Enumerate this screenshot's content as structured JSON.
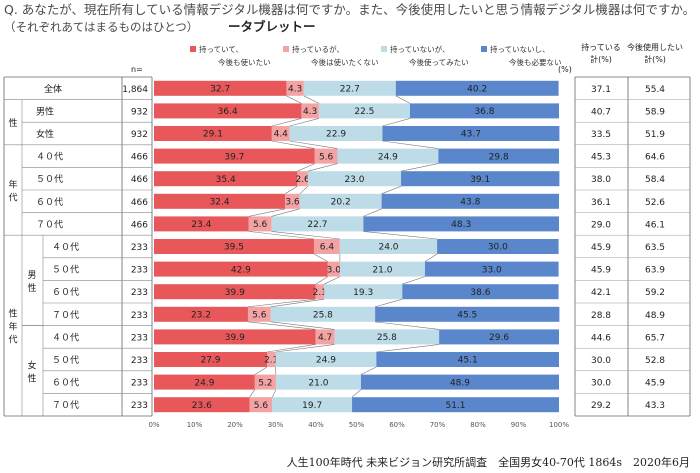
{
  "question": "Q. あなたが、現在所有している情報デジタル機器は何ですか。また、今後使用したいと思う情報デジタル機器は何ですか。",
  "subtitle": "（それぞれあてはまるものはひとつ）",
  "device": "ータブレットー",
  "n_label": "n=",
  "percent_unit": "(%)",
  "legend": [
    {
      "line1": "持っていて、",
      "line2": "今後も使いたい",
      "color": "#E8585A"
    },
    {
      "line1": "持っているが、",
      "line2": "今後は使いたくない",
      "color": "#F3A3A4"
    },
    {
      "line1": "持っていないが、",
      "line2": "今後使ってみたい",
      "color": "#BDDCE7"
    },
    {
      "line1": "持っていないし、",
      "line2": "今後も必要ない",
      "color": "#5A86CC"
    }
  ],
  "columns": {
    "own_line1": "持っている",
    "own_line2": "計(%)",
    "future_line1": "今後使用したい",
    "future_line2": "計(%)"
  },
  "groups": {
    "gender": "性",
    "age": "年代",
    "genderage": "性年代",
    "male": "男性",
    "female": "女性"
  },
  "footer": "人生100年時代 未来ビジョン研究所調査　全国男女40-70代 1864s　2020年6月",
  "chart_data": {
    "type": "bar",
    "stacked": true,
    "orientation": "horizontal",
    "xlim": [
      0,
      100
    ],
    "x_ticks": [
      "0%",
      "10%",
      "20%",
      "30%",
      "40%",
      "50%",
      "60%",
      "70%",
      "80%",
      "90%",
      "100%"
    ],
    "categories": [
      "全体",
      "男性",
      "女性",
      "４０代",
      "５０代",
      "６０代",
      "７０代",
      "４０代",
      "５０代",
      "６０代",
      "７０代",
      "４０代",
      "５０代",
      "６０代",
      "７０代"
    ],
    "n": [
      "1,864",
      "932",
      "932",
      "466",
      "466",
      "466",
      "466",
      "233",
      "233",
      "233",
      "233",
      "233",
      "233",
      "233",
      "233"
    ],
    "series": [
      {
        "values": [
          32.7,
          36.4,
          29.1,
          39.7,
          35.4,
          32.4,
          23.4,
          39.5,
          42.9,
          39.9,
          23.2,
          39.9,
          27.9,
          24.9,
          23.6
        ]
      },
      {
        "values": [
          4.3,
          4.3,
          4.4,
          5.6,
          2.6,
          3.6,
          5.6,
          6.4,
          3.0,
          2.1,
          5.6,
          4.7,
          2.1,
          5.2,
          5.6
        ]
      },
      {
        "values": [
          22.7,
          22.5,
          22.9,
          24.9,
          23.0,
          20.2,
          22.7,
          24.0,
          21.0,
          19.3,
          25.8,
          25.8,
          24.9,
          21.0,
          19.7
        ]
      },
      {
        "values": [
          40.2,
          36.8,
          43.7,
          29.8,
          39.1,
          43.8,
          48.3,
          30.0,
          33.0,
          38.6,
          45.5,
          29.6,
          45.1,
          48.9,
          51.1
        ]
      }
    ],
    "own_total": [
      "37.1",
      "40.7",
      "33.5",
      "45.3",
      "38.0",
      "36.1",
      "29.0",
      "45.9",
      "45.9",
      "42.1",
      "28.8",
      "44.6",
      "30.0",
      "30.0",
      "29.2"
    ],
    "future_total": [
      "55.4",
      "58.9",
      "51.9",
      "64.6",
      "58.4",
      "52.6",
      "46.1",
      "63.5",
      "63.9",
      "59.2",
      "48.9",
      "65.7",
      "52.8",
      "45.9",
      "43.3"
    ]
  }
}
